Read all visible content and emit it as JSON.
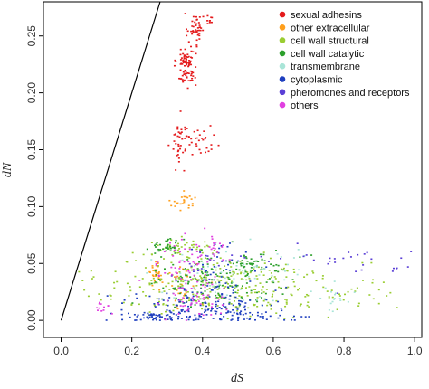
{
  "chart_data": {
    "type": "scatter",
    "xlabel": "dS",
    "ylabel": "dN",
    "xlim": [
      -0.05,
      1.02
    ],
    "ylim": [
      -0.015,
      0.28
    ],
    "x_ticks": [
      0.0,
      0.2,
      0.4,
      0.6,
      0.8,
      1.0
    ],
    "x_tick_labels": [
      "0.0",
      "0.2",
      "0.4",
      "0.6",
      "0.8",
      "1.0"
    ],
    "y_ticks": [
      0.0,
      0.05,
      0.1,
      0.15,
      0.2,
      0.25
    ],
    "y_tick_labels": [
      "0.00",
      "0.05",
      "0.10",
      "0.15",
      "0.20",
      "0.25"
    ],
    "grid": false,
    "legend_position": "top-right",
    "reference_line": {
      "slope": 1.0,
      "intercept": 0.0
    },
    "series": [
      {
        "name": "sexual adhesins",
        "color": "#e41a1c",
        "clusters": [
          {
            "x": 0.38,
            "y": 0.258,
            "sx": 0.012,
            "sy": 0.006,
            "n": 40
          },
          {
            "x": 0.415,
            "y": 0.265,
            "sx": 0.006,
            "sy": 0.003,
            "n": 10
          },
          {
            "x": 0.355,
            "y": 0.225,
            "sx": 0.014,
            "sy": 0.01,
            "n": 90
          },
          {
            "x": 0.338,
            "y": 0.158,
            "sx": 0.012,
            "sy": 0.01,
            "n": 40
          },
          {
            "x": 0.39,
            "y": 0.158,
            "sx": 0.025,
            "sy": 0.01,
            "n": 20
          },
          {
            "x": 0.41,
            "y": 0.16,
            "sx": 0.02,
            "sy": 0.006,
            "n": 8
          }
        ]
      },
      {
        "name": "other extracellular",
        "color": "#ff9f1c",
        "clusters": [
          {
            "x": 0.35,
            "y": 0.103,
            "sx": 0.02,
            "sy": 0.004,
            "n": 25
          },
          {
            "x": 0.27,
            "y": 0.042,
            "sx": 0.008,
            "sy": 0.005,
            "n": 30
          },
          {
            "x": 0.35,
            "y": 0.03,
            "sx": 0.03,
            "sy": 0.01,
            "n": 30
          }
        ]
      },
      {
        "name": "cell wall structural",
        "color": "#9acd32",
        "clusters": [
          {
            "x": 0.4,
            "y": 0.03,
            "sx": 0.15,
            "sy": 0.012,
            "n": 260
          },
          {
            "x": 0.72,
            "y": 0.025,
            "sx": 0.12,
            "sy": 0.012,
            "n": 70
          },
          {
            "x": 0.35,
            "y": 0.062,
            "sx": 0.05,
            "sy": 0.005,
            "n": 50
          }
        ]
      },
      {
        "name": "cell wall catalytic",
        "color": "#2ca02c",
        "clusters": [
          {
            "x": 0.45,
            "y": 0.035,
            "sx": 0.1,
            "sy": 0.012,
            "n": 140
          },
          {
            "x": 0.3,
            "y": 0.065,
            "sx": 0.02,
            "sy": 0.004,
            "n": 35
          },
          {
            "x": 0.53,
            "y": 0.05,
            "sx": 0.03,
            "sy": 0.005,
            "n": 40
          }
        ]
      },
      {
        "name": "transmembrane",
        "color": "#a9e5d8",
        "clusters": [
          {
            "x": 0.48,
            "y": 0.04,
            "sx": 0.12,
            "sy": 0.012,
            "n": 70
          },
          {
            "x": 0.78,
            "y": 0.02,
            "sx": 0.03,
            "sy": 0.006,
            "n": 15
          }
        ]
      },
      {
        "name": "cytoplasmic",
        "color": "#1f3fbf",
        "clusters": [
          {
            "x": 0.4,
            "y": 0.012,
            "sx": 0.1,
            "sy": 0.008,
            "n": 160
          },
          {
            "x": 0.28,
            "y": 0.003,
            "sx": 0.05,
            "sy": 0.002,
            "n": 50
          },
          {
            "x": 0.58,
            "y": 0.003,
            "sx": 0.05,
            "sy": 0.002,
            "n": 30
          },
          {
            "x": 0.45,
            "y": 0.045,
            "sx": 0.05,
            "sy": 0.015,
            "n": 40
          }
        ]
      },
      {
        "name": "pheromones and receptors",
        "color": "#5a3fd6",
        "clusters": [
          {
            "x": 0.7,
            "y": 0.055,
            "sx": 0.15,
            "sy": 0.005,
            "n": 25
          },
          {
            "x": 0.9,
            "y": 0.045,
            "sx": 0.06,
            "sy": 0.01,
            "n": 10
          },
          {
            "x": 0.4,
            "y": 0.045,
            "sx": 0.06,
            "sy": 0.01,
            "n": 15
          }
        ]
      },
      {
        "name": "others",
        "color": "#e040e0",
        "clusters": [
          {
            "x": 0.36,
            "y": 0.05,
            "sx": 0.05,
            "sy": 0.012,
            "n": 70
          },
          {
            "x": 0.38,
            "y": 0.015,
            "sx": 0.05,
            "sy": 0.008,
            "n": 40
          },
          {
            "x": 0.12,
            "y": 0.012,
            "sx": 0.015,
            "sy": 0.003,
            "n": 12
          },
          {
            "x": 0.44,
            "y": 0.065,
            "sx": 0.01,
            "sy": 0.004,
            "n": 12
          }
        ]
      }
    ]
  }
}
